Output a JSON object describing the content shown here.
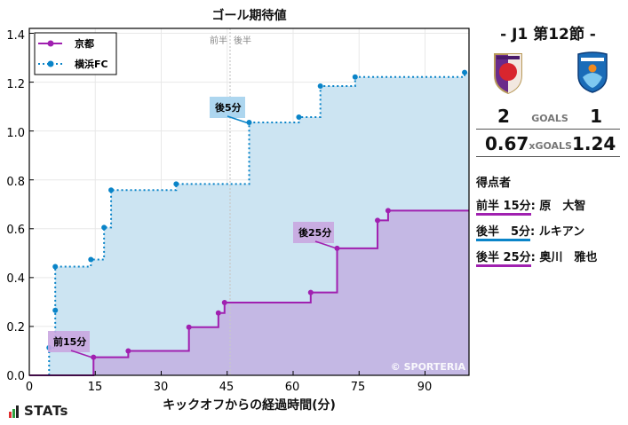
{
  "chart_data": {
    "type": "line",
    "title": "ゴール期待値",
    "xlabel": "キックオフからの経過時間(分)",
    "ylabel": "",
    "xlim": [
      0,
      100
    ],
    "ylim": [
      0,
      1.42
    ],
    "xticks": [
      0,
      15,
      30,
      45,
      60,
      75,
      90
    ],
    "yticks": [
      0.0,
      0.2,
      0.4,
      0.6,
      0.8,
      1.0,
      1.2,
      1.4
    ],
    "grid": true,
    "legend_position": "upper left",
    "halftime_marker": {
      "x": 45.8,
      "label_first": "前半",
      "label_second": "後半"
    },
    "series": [
      {
        "name": "京都",
        "style": "solid step",
        "color": "#a020b0",
        "fill": "#c4b8e4",
        "points": [
          {
            "x": 0,
            "y": 0
          },
          {
            "x": 14.6,
            "y": 0.074
          },
          {
            "x": 22.5,
            "y": 0.1
          },
          {
            "x": 36.3,
            "y": 0.197
          },
          {
            "x": 43.0,
            "y": 0.255
          },
          {
            "x": 44.4,
            "y": 0.298
          },
          {
            "x": 64.0,
            "y": 0.339
          },
          {
            "x": 70.0,
            "y": 0.52
          },
          {
            "x": 79.2,
            "y": 0.634
          },
          {
            "x": 81.6,
            "y": 0.674
          },
          {
            "x": 100,
            "y": 0.674
          }
        ]
      },
      {
        "name": "横浜FC",
        "style": "dotted step",
        "color": "#0a84c8",
        "fill": "#cce4f2",
        "points": [
          {
            "x": 4.5,
            "y": 0
          },
          {
            "x": 4.5,
            "y": 0.113
          },
          {
            "x": 5.9,
            "y": 0.266
          },
          {
            "x": 5.9,
            "y": 0.445
          },
          {
            "x": 14.0,
            "y": 0.474
          },
          {
            "x": 17.0,
            "y": 0.605
          },
          {
            "x": 18.6,
            "y": 0.758
          },
          {
            "x": 33.4,
            "y": 0.783
          },
          {
            "x": 50.0,
            "y": 1.035
          },
          {
            "x": 61.3,
            "y": 1.057
          },
          {
            "x": 66.2,
            "y": 1.184
          },
          {
            "x": 74.1,
            "y": 1.221
          },
          {
            "x": 99.0,
            "y": 1.24
          },
          {
            "x": 100,
            "y": 1.24
          }
        ]
      }
    ],
    "annotations": [
      {
        "text": "前15分",
        "x": 14.6,
        "y": 0.074,
        "team": "京都"
      },
      {
        "text": "後5分",
        "x": 50.0,
        "y": 1.035,
        "team": "横浜FC"
      },
      {
        "text": "後25分",
        "x": 70.0,
        "y": 0.52,
        "team": "京都"
      }
    ],
    "watermark": "© SPORTERIA"
  },
  "header": {
    "title": "ゴール期待値"
  },
  "legend": [
    {
      "label": "京都"
    },
    {
      "label": "横浜FC"
    }
  ],
  "axes": {
    "xlabel": "キックオフからの経過時間(分)",
    "xticks": [
      "0",
      "15",
      "30",
      "45",
      "60",
      "75",
      "90"
    ],
    "yticks": [
      "0.0",
      "0.2",
      "0.4",
      "0.6",
      "0.8",
      "1.0",
      "1.2",
      "1.4"
    ],
    "half_first": "前半",
    "half_second": "後半"
  },
  "annotations": {
    "a1": "前15分",
    "a2": "後5分",
    "a3": "後25分"
  },
  "watermark": "© SPORTERIA",
  "logo": {
    "text": "STATs"
  },
  "panel": {
    "round": "-  J1 第12節  -",
    "home": {
      "name": "京都",
      "goals": "2",
      "xg": "0.67",
      "color": "#a020b0"
    },
    "away": {
      "name": "横浜FC",
      "goals": "1",
      "xg": "1.24",
      "color": "#0a84c8"
    },
    "goals_label": "GOALS",
    "xgoals_label": "xGOALS",
    "scorers_title": "得点者",
    "scorers": [
      {
        "when": "前半 15分",
        "name": ": 原　大智",
        "team": "home"
      },
      {
        "when": "後半　5分",
        "name": ": ルキアン",
        "team": "away"
      },
      {
        "when": "後半 25分",
        "name": ": 奥川　雅也",
        "team": "home"
      }
    ]
  },
  "colors": {
    "kyoto": "#a020b0",
    "kyoto_fill": "#c4b8e4",
    "yokohama": "#0a84c8",
    "yokohama_fill": "#cce4f2",
    "kyoto_label_bg": "#c9a6e0",
    "yokohama_label_bg": "#a9d4ee"
  }
}
